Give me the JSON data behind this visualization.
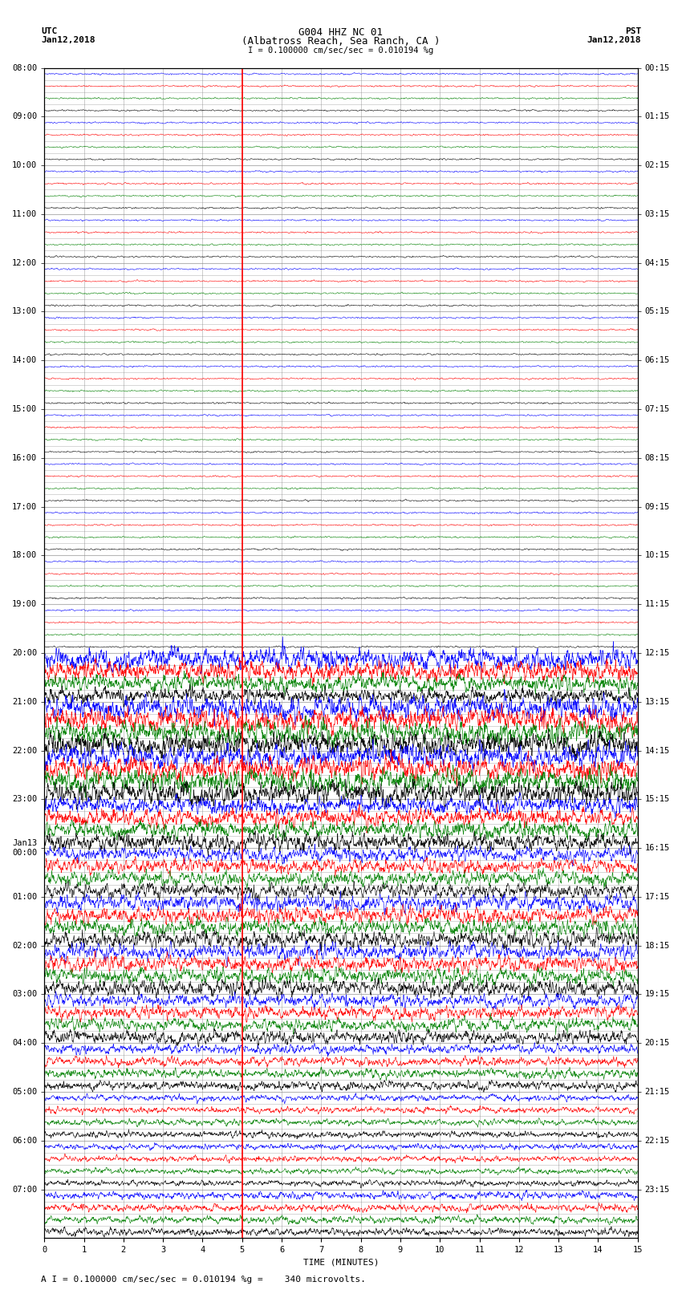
{
  "title_line1": "G004 HHZ NC 01",
  "title_line2": "(Albatross Reach, Sea Ranch, CA )",
  "scale_label": "I = 0.100000 cm/sec/sec = 0.010194 %g",
  "left_label_line1": "UTC",
  "left_label_line2": "Jan12,2018",
  "right_label_line1": "PST",
  "right_label_line2": "Jan12,2018",
  "xlabel": "TIME (MINUTES)",
  "footer": "A I = 0.100000 cm/sec/sec = 0.010194 %g =    340 microvolts.",
  "utc_labels": [
    "08:00",
    "09:00",
    "10:00",
    "11:00",
    "12:00",
    "13:00",
    "14:00",
    "15:00",
    "16:00",
    "17:00",
    "18:00",
    "19:00",
    "20:00",
    "21:00",
    "22:00",
    "23:00",
    "Jan13\n00:00",
    "01:00",
    "02:00",
    "03:00",
    "04:00",
    "05:00",
    "06:00",
    "07:00"
  ],
  "pst_labels": [
    "00:15",
    "01:15",
    "02:15",
    "03:15",
    "04:15",
    "05:15",
    "06:15",
    "07:15",
    "08:15",
    "09:15",
    "10:15",
    "11:15",
    "12:15",
    "13:15",
    "14:15",
    "15:15",
    "16:15",
    "17:15",
    "18:15",
    "19:15",
    "20:15",
    "21:15",
    "22:15",
    "23:15"
  ],
  "n_hours": 24,
  "traces_per_hour": 4,
  "x_min": 0,
  "x_max": 15,
  "x_ticks": [
    0,
    1,
    2,
    3,
    4,
    5,
    6,
    7,
    8,
    9,
    10,
    11,
    12,
    13,
    14,
    15
  ],
  "vertical_line_x": 5.0,
  "colors": [
    "blue",
    "red",
    "green",
    "black"
  ],
  "quiet_hours": 12,
  "background_color": "white",
  "grid_color": "#888888",
  "vline_color": "red",
  "font_size_title": 9,
  "font_size_labels": 8,
  "font_size_ticks": 7.5,
  "font_size_footer": 8
}
